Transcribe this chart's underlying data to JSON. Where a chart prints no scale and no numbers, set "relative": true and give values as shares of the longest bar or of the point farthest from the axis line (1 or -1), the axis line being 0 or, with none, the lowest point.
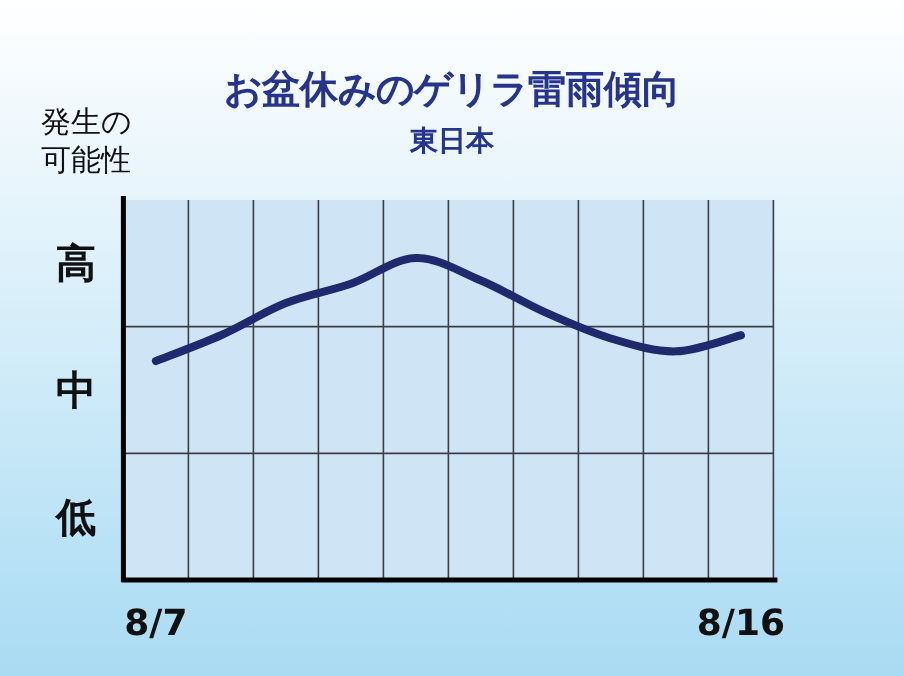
{
  "chart_data": {
    "type": "line",
    "title": "お盆休みのゲリラ雷雨傾向",
    "subtitle": "東日本",
    "ylabel": "発生の可能性",
    "categories": [
      "8/7",
      null,
      null,
      null,
      null,
      null,
      null,
      null,
      null,
      "8/16"
    ],
    "series": [
      {
        "color": "#1f2a6e",
        "values": [
          0.68,
          0.76,
          0.86,
          0.92,
          1,
          0.93,
          0.83,
          0.75,
          0.71,
          0.76
        ]
      }
    ],
    "relative": true,
    "annotations": [
      "高",
      "中",
      "低"
    ],
    "grid": true,
    "marker": "none",
    "line_style": "solid"
  }
}
